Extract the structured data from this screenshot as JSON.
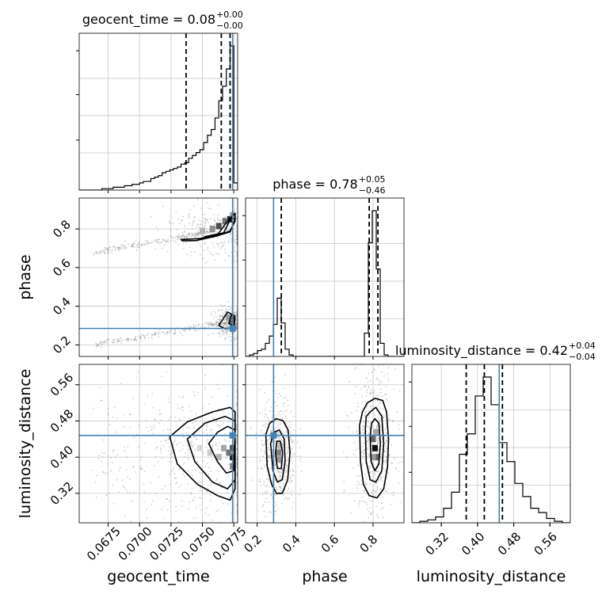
{
  "chart_data": {
    "type": "corner",
    "truth_color": "#4682b4",
    "parameters": [
      "geocent_time",
      "phase",
      "luminosity_distance"
    ],
    "titles": [
      {
        "param": "geocent_time",
        "text": "geocent_time = 0.08",
        "sup": "+0.00",
        "sub": "−0.00"
      },
      {
        "param": "phase",
        "text": "phase = 0.78",
        "sup": "+0.05",
        "sub": "−0.46"
      },
      {
        "param": "luminosity_distance",
        "text": "luminosity_distance = 0.42",
        "sup": "+0.04",
        "sub": "−0.04"
      }
    ],
    "axes": {
      "geocent_time": {
        "range": [
          0.0652,
          0.0778
        ],
        "ticks": [
          0.0675,
          0.07,
          0.0725,
          0.075,
          0.0775
        ],
        "tick_labels": [
          "0.0675",
          "0.0700",
          "0.0725",
          "0.0750",
          "0.0775"
        ],
        "label": "geocent_time"
      },
      "phase": {
        "range": [
          0.14,
          0.96
        ],
        "ticks": [
          0.2,
          0.4,
          0.6,
          0.8
        ],
        "tick_labels": [
          "0.2",
          "0.4",
          "0.6",
          "0.8"
        ],
        "label": "phase"
      },
      "luminosity_distance": {
        "range": [
          0.255,
          0.605
        ],
        "ticks": [
          0.32,
          0.4,
          0.48,
          0.56
        ],
        "tick_labels": [
          "0.32",
          "0.40",
          "0.48",
          "0.56"
        ],
        "label": "luminosity_distance"
      }
    },
    "truths": {
      "geocent_time": 0.0774,
      "phase": 0.285,
      "luminosity_distance": 0.448
    },
    "quantiles": {
      "geocent_time": [
        0.0737,
        0.0765,
        0.0772
      ],
      "phase": [
        0.325,
        0.78,
        0.825
      ],
      "luminosity_distance": [
        0.375,
        0.415,
        0.455
      ]
    },
    "histograms": {
      "geocent_time": {
        "bins": [
          0.0652,
          0.0655,
          0.0658,
          0.0661,
          0.0664,
          0.0667,
          0.067,
          0.0673,
          0.0676,
          0.0679,
          0.0682,
          0.0685,
          0.0688,
          0.0691,
          0.0694,
          0.0697,
          0.07,
          0.0703,
          0.0706,
          0.0709,
          0.0712,
          0.0715,
          0.0718,
          0.0721,
          0.0724,
          0.0727,
          0.073,
          0.0733,
          0.0736,
          0.0739,
          0.0742,
          0.0745,
          0.0748,
          0.0751,
          0.0754,
          0.0757,
          0.076,
          0.0763,
          0.0766,
          0.0769,
          0.0772,
          0.0775,
          0.0778
        ],
        "counts": [
          0,
          0,
          0,
          0,
          0,
          0,
          1,
          1,
          1,
          2,
          2,
          2,
          3,
          3,
          4,
          4,
          5,
          6,
          6,
          8,
          9,
          10,
          12,
          13,
          14,
          15,
          16,
          18,
          19,
          22,
          24,
          26,
          28,
          33,
          38,
          42,
          50,
          62,
          72,
          84,
          100,
          5
        ]
      },
      "phase": {
        "bins": [
          0.14,
          0.1605,
          0.181,
          0.2015,
          0.222,
          0.2425,
          0.263,
          0.2835,
          0.304,
          0.3245,
          0.345,
          0.3655,
          0.386,
          0.4065,
          0.427,
          0.4475,
          0.468,
          0.4885,
          0.509,
          0.5295,
          0.55,
          0.5705,
          0.591,
          0.6115,
          0.632,
          0.6525,
          0.673,
          0.6935,
          0.714,
          0.7345,
          0.755,
          0.7755,
          0.796,
          0.8165,
          0.837,
          0.8575,
          0.878,
          0.8985,
          0.919,
          0.9395,
          0.96
        ],
        "counts": [
          0,
          1,
          2,
          4,
          5,
          9,
          14,
          22,
          40,
          23,
          5,
          1,
          0,
          0,
          0,
          0,
          0,
          0,
          0,
          0,
          0,
          0,
          0,
          0,
          0,
          0,
          0,
          0,
          0,
          0,
          16,
          78,
          100,
          60,
          9,
          1,
          0,
          0,
          0,
          0
        ]
      },
      "luminosity_distance": {
        "bins": [
          0.255,
          0.2725,
          0.29,
          0.3075,
          0.325,
          0.3425,
          0.36,
          0.3775,
          0.395,
          0.4125,
          0.43,
          0.4475,
          0.465,
          0.4825,
          0.5,
          0.5175,
          0.535,
          0.5525,
          0.57,
          0.5875,
          0.605
        ],
        "counts": [
          0,
          1,
          2,
          4,
          10,
          21,
          47,
          61,
          87,
          100,
          81,
          55,
          42,
          27,
          18,
          10,
          7,
          3,
          1,
          0
        ]
      }
    },
    "contours_2d": [
      {
        "x": "geocent_time",
        "y": "phase",
        "levels": [
          {
            "level": 1,
            "polygons": [
              [
                [
                  0.0733,
                  0.745
                ],
                [
                  0.0748,
                  0.75
                ],
                [
                  0.0762,
                  0.77
                ],
                [
                  0.0771,
                  0.85
                ],
                [
                  0.0776,
                  0.88
                ],
                [
                  0.0776,
                  0.84
                ],
                [
                  0.0772,
                  0.79
                ],
                [
                  0.0762,
                  0.765
                ],
                [
                  0.0745,
                  0.74
                ],
                [
                  0.0734,
                  0.738
                ]
              ],
              [
                [
                  0.0763,
                  0.3
                ],
                [
                  0.077,
                  0.37
                ],
                [
                  0.0776,
                  0.35
                ],
                [
                  0.0775,
                  0.29
                ],
                [
                  0.0768,
                  0.283
                ]
              ]
            ]
          },
          {
            "level": 2,
            "polygons": [
              [
                [
                  0.0752,
                  0.76
                ],
                [
                  0.0767,
                  0.78
                ],
                [
                  0.0773,
                  0.86
                ],
                [
                  0.0776,
                  0.85
                ],
                [
                  0.0772,
                  0.785
                ],
                [
                  0.0758,
                  0.758
                ]
              ],
              [
                [
                  0.0771,
                  0.31
                ],
                [
                  0.0773,
                  0.355
                ],
                [
                  0.0776,
                  0.335
                ],
                [
                  0.0775,
                  0.3
                ]
              ]
            ]
          }
        ]
      },
      {
        "x": "geocent_time",
        "y": "luminosity_distance",
        "levels": [
          {
            "level": 1,
            "polygons": [
              [
                [
                  0.0724,
                  0.445
                ],
                [
                  0.073,
                  0.385
                ],
                [
                  0.0746,
                  0.34
                ],
                [
                  0.0762,
                  0.315
                ],
                [
                  0.0772,
                  0.305
                ],
                [
                  0.0776,
                  0.33
                ],
                [
                  0.0776,
                  0.5
                ],
                [
                  0.0772,
                  0.51
                ],
                [
                  0.0758,
                  0.5
                ],
                [
                  0.0738,
                  0.478
                ]
              ]
            ]
          },
          {
            "level": 2,
            "polygons": [
              [
                [
                  0.0738,
                  0.44
                ],
                [
                  0.0744,
                  0.39
                ],
                [
                  0.0758,
                  0.345
                ],
                [
                  0.077,
                  0.33
                ],
                [
                  0.0776,
                  0.35
                ],
                [
                  0.0776,
                  0.48
                ],
                [
                  0.0768,
                  0.49
                ],
                [
                  0.0752,
                  0.475
                ]
              ]
            ]
          },
          {
            "level": 3,
            "polygons": [
              [
                [
                  0.0755,
                  0.43
                ],
                [
                  0.0762,
                  0.39
                ],
                [
                  0.0769,
                  0.365
                ],
                [
                  0.0775,
                  0.37
                ],
                [
                  0.0776,
                  0.46
                ],
                [
                  0.077,
                  0.468
                ],
                [
                  0.0762,
                  0.455
                ]
              ]
            ]
          }
        ]
      },
      {
        "x": "phase",
        "y": "luminosity_distance",
        "levels": [
          {
            "level": 1,
            "polygons": [
              [
                [
                  0.245,
                  0.45
                ],
                [
                  0.252,
                  0.38
                ],
                [
                  0.275,
                  0.34
                ],
                [
                  0.3,
                  0.32
                ],
                [
                  0.33,
                  0.32
                ],
                [
                  0.358,
                  0.35
                ],
                [
                  0.37,
                  0.41
                ],
                [
                  0.36,
                  0.46
                ],
                [
                  0.335,
                  0.48
                ],
                [
                  0.3,
                  0.485
                ],
                [
                  0.265,
                  0.475
                ]
              ],
              [
                [
                  0.73,
                  0.47
                ],
                [
                  0.735,
                  0.39
                ],
                [
                  0.75,
                  0.34
                ],
                [
                  0.78,
                  0.315
                ],
                [
                  0.82,
                  0.31
                ],
                [
                  0.855,
                  0.33
                ],
                [
                  0.875,
                  0.38
                ],
                [
                  0.88,
                  0.44
                ],
                [
                  0.87,
                  0.5
                ],
                [
                  0.85,
                  0.525
                ],
                [
                  0.81,
                  0.53
                ],
                [
                  0.77,
                  0.52
                ],
                [
                  0.745,
                  0.5
                ]
              ]
            ]
          },
          {
            "level": 2,
            "polygons": [
              [
                [
                  0.27,
                  0.43
                ],
                [
                  0.282,
                  0.37
                ],
                [
                  0.305,
                  0.345
                ],
                [
                  0.33,
                  0.35
                ],
                [
                  0.345,
                  0.39
                ],
                [
                  0.34,
                  0.44
                ],
                [
                  0.315,
                  0.46
                ],
                [
                  0.285,
                  0.455
                ]
              ],
              [
                [
                  0.76,
                  0.46
                ],
                [
                  0.765,
                  0.39
                ],
                [
                  0.785,
                  0.35
                ],
                [
                  0.815,
                  0.345
                ],
                [
                  0.845,
                  0.37
                ],
                [
                  0.855,
                  0.43
                ],
                [
                  0.845,
                  0.49
                ],
                [
                  0.815,
                  0.51
                ],
                [
                  0.785,
                  0.5
                ],
                [
                  0.765,
                  0.49
                ]
              ]
            ]
          },
          {
            "level": 3,
            "polygons": [
              [
                [
                  0.295,
                  0.41
                ],
                [
                  0.305,
                  0.375
                ],
                [
                  0.325,
                  0.375
                ],
                [
                  0.332,
                  0.41
                ],
                [
                  0.32,
                  0.435
                ],
                [
                  0.302,
                  0.435
                ]
              ],
              [
                [
                  0.785,
                  0.445
                ],
                [
                  0.79,
                  0.39
                ],
                [
                  0.81,
                  0.37
                ],
                [
                  0.83,
                  0.385
                ],
                [
                  0.838,
                  0.43
                ],
                [
                  0.83,
                  0.475
                ],
                [
                  0.81,
                  0.485
                ],
                [
                  0.792,
                  0.475
                ]
              ]
            ]
          }
        ]
      }
    ],
    "density_2d": [
      {
        "x": "geocent_time",
        "y": "phase",
        "cells": [
          [
            0.0772,
            0.85,
            0.9
          ],
          [
            0.0768,
            0.84,
            0.55
          ],
          [
            0.0763,
            0.815,
            0.7
          ],
          [
            0.0758,
            0.8,
            0.45
          ],
          [
            0.075,
            0.79,
            0.3
          ],
          [
            0.0774,
            0.87,
            0.4
          ],
          [
            0.0774,
            0.325,
            0.7
          ],
          [
            0.0771,
            0.34,
            0.4
          ],
          [
            0.0775,
            0.3,
            0.35
          ]
        ]
      },
      {
        "x": "geocent_time",
        "y": "luminosity_distance",
        "cells": [
          [
            0.0774,
            0.4,
            0.9
          ],
          [
            0.0774,
            0.42,
            0.7
          ],
          [
            0.0771,
            0.41,
            0.55
          ],
          [
            0.0767,
            0.42,
            0.35
          ],
          [
            0.0774,
            0.38,
            0.5
          ],
          [
            0.0763,
            0.4,
            0.3
          ],
          [
            0.0756,
            0.41,
            0.2
          ],
          [
            0.0748,
            0.42,
            0.15
          ],
          [
            0.074,
            0.43,
            0.1
          ]
        ]
      },
      {
        "x": "phase",
        "y": "luminosity_distance",
        "cells": [
          [
            0.81,
            0.42,
            0.95
          ],
          [
            0.8,
            0.44,
            0.6
          ],
          [
            0.82,
            0.4,
            0.6
          ],
          [
            0.8,
            0.4,
            0.4
          ],
          [
            0.815,
            0.455,
            0.35
          ],
          [
            0.31,
            0.41,
            0.5
          ],
          [
            0.31,
            0.395,
            0.4
          ],
          [
            0.32,
            0.425,
            0.25
          ]
        ]
      }
    ]
  }
}
